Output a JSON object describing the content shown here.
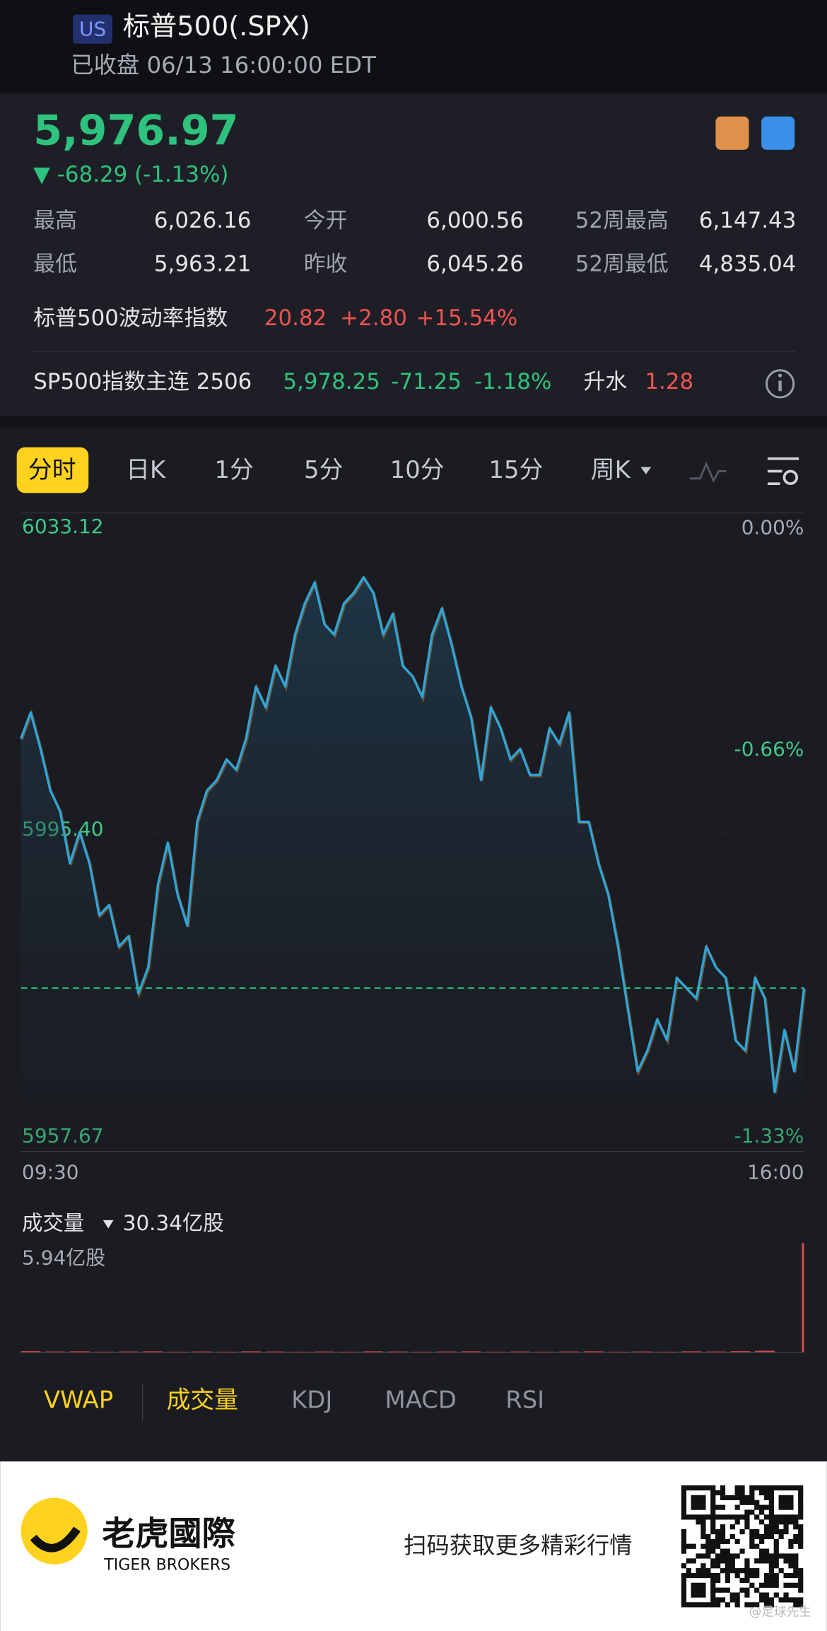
{
  "header": {
    "badge": "US",
    "title": "标普500(.SPX)",
    "subtitle": "已收盘 06/13 16:00:00 EDT"
  },
  "quote": {
    "price": "5,976.97",
    "change": "▼ -68.29 (-1.13%)"
  },
  "stats": [
    [
      "最高",
      "6,026.16",
      "今开",
      "6,000.56",
      "52周最高",
      "6,147.43"
    ],
    [
      "最低",
      "5,963.21",
      "昨收",
      "6,045.26",
      "52周最低",
      "4,835.04"
    ]
  ],
  "vix": {
    "label": "标普500波动率指数",
    "value": "20.82",
    "change": "+2.80",
    "pct": "+15.54%"
  },
  "futures": {
    "label": "SP500指数主连 2506",
    "value": "5,978.25",
    "change": "-71.25",
    "pct": "-1.18%",
    "basis_label": "升水",
    "basis": "1.28"
  },
  "tabs": [
    "分时",
    "日K",
    "1分",
    "5分",
    "10分",
    "15分",
    "周K"
  ],
  "chart_data": {
    "type": "line",
    "color": "#2aa7de",
    "values": [
      6006.46,
      6009.53,
      6005.23,
      6000.31,
      5997.85,
      5991.71,
      5995.4,
      5991.71,
      5985.57,
      5986.79,
      5981.88,
      5983.11,
      5976.35,
      5979.42,
      5989.25,
      5994.17,
      5988.02,
      5984.34,
      5996.62,
      6000.31,
      6001.54,
      6004.0,
      6002.77,
      6006.46,
      6012.6,
      6010.14,
      6015.06,
      6012.6,
      6018.74,
      6022.43,
      6024.89,
      6019.97,
      6018.74,
      6022.43,
      6023.66,
      6025.5,
      6023.66,
      6018.74,
      6021.2,
      6015.06,
      6013.83,
      6011.37,
      6018.74,
      6021.82,
      6017.51,
      6012.6,
      6008.91,
      6001.54,
      6010.14,
      6007.68,
      6004.0,
      6005.23,
      6002.15,
      6002.15,
      6007.68,
      6005.84,
      6009.53,
      5996.62,
      5996.62,
      5991.71,
      5988.02,
      5981.88,
      5974.51,
      5967.13,
      5969.59,
      5973.28,
      5970.82,
      5978.19,
      5976.96,
      5975.74,
      5981.88,
      5979.42,
      5978.19,
      5970.82,
      5969.59,
      5978.19,
      5975.74,
      5964.68,
      5972.05,
      5967.13,
      5976.97
    ],
    "ylim": [
      5957.67,
      6033.12
    ],
    "yticks": [
      5957.67,
      {
        "value": 5995.4,
        "label": "5995.40"
      },
      6033.12
    ],
    "right_labels": [
      "0.00%",
      "-0.66%",
      "-1.33%"
    ],
    "x_labels": [
      "09:30",
      "16:00"
    ]
  },
  "volume": {
    "label": "成交量",
    "total": "30.34亿股",
    "max_label": "5.94亿股",
    "color": "#d24b4b",
    "ylim": [
      0,
      5.94
    ],
    "values": [
      0.06,
      0.04,
      0.05,
      0.03,
      0.04,
      0.05,
      0.03,
      0.04,
      0.03,
      0.05,
      0.04,
      0.03,
      0.04,
      0.03,
      0.05,
      0.04,
      0.03,
      0.04,
      0.05,
      0.03,
      0.04,
      0.03,
      0.04,
      0.05,
      0.03,
      0.04,
      0.03,
      0.05,
      0.04,
      0.06,
      0.08,
      5.94
    ]
  },
  "indicators": [
    "VWAP",
    "成交量",
    "KDJ",
    "MACD",
    "RSI"
  ],
  "footer": {
    "brand": "老虎國際",
    "brand_en": "TIGER BROKERS",
    "slogan": "扫码获取更多精彩行情",
    "watermark": "@足球先生"
  }
}
